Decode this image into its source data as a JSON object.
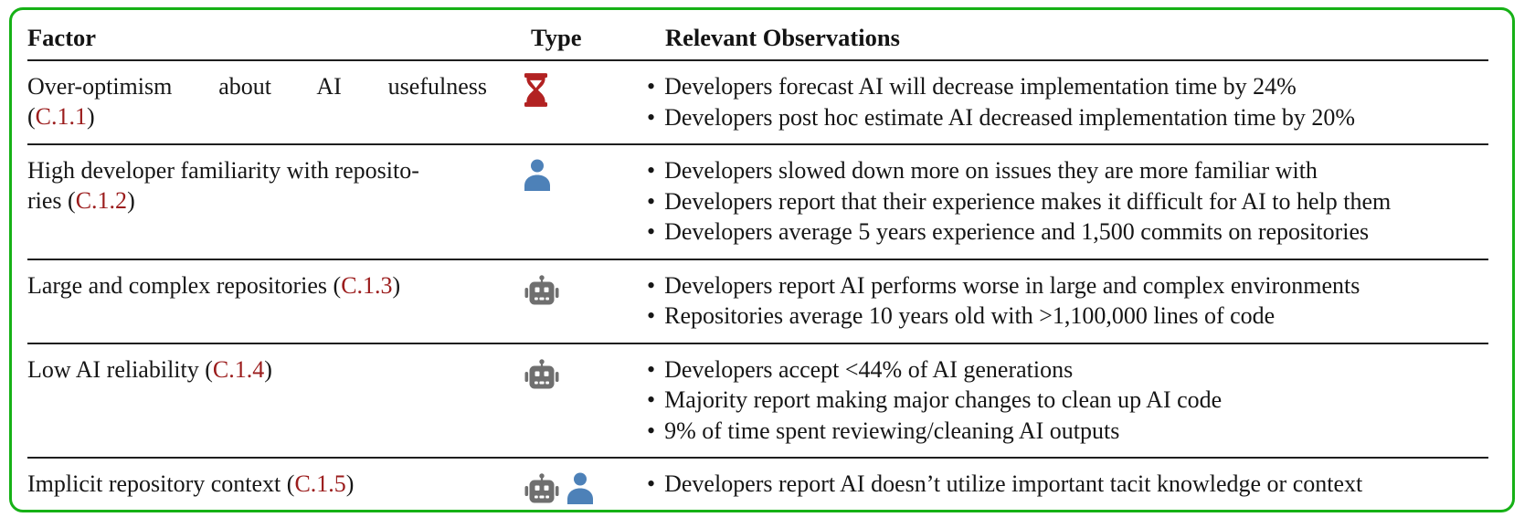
{
  "colors": {
    "frame_green": "#16b116",
    "ref_red": "#9b1c1c",
    "hourglass_red": "#b22222",
    "person_blue": "#4d81b8",
    "robot_gray": "#6f6f6f",
    "text": "#161616",
    "background": "#ffffff"
  },
  "table": {
    "headers": {
      "factor": "Factor",
      "type": "Type",
      "observations": "Relevant Observations"
    },
    "bullet": "•",
    "ref_open": "(",
    "ref_close": ")",
    "rows": [
      {
        "factor_text": "Over-optimism about AI usefulness\n",
        "ref": "C.1.1",
        "spread_first_line": true,
        "icons": [
          "hourglass-icon"
        ],
        "observations": [
          "Developers forecast AI will decrease implementation time by 24%",
          "Developers post hoc estimate AI decreased implementation time by 20%"
        ]
      },
      {
        "factor_text": "High developer familiarity with reposito-\nries ",
        "ref": "C.1.2",
        "spread_first_line": false,
        "icons": [
          "person-icon"
        ],
        "observations": [
          "Developers slowed down more on issues they are more familiar with",
          "Developers report that their experience makes it difficult for AI to help them",
          "Developers average 5 years experience and 1,500 commits on repositories"
        ]
      },
      {
        "factor_text": "Large and complex repositories ",
        "ref": "C.1.3",
        "spread_first_line": false,
        "icons": [
          "robot-icon"
        ],
        "observations": [
          "Developers report AI performs worse in large and complex environments",
          "Repositories average 10 years old with >1,100,000 lines of code"
        ]
      },
      {
        "factor_text": "Low AI reliability ",
        "ref": "C.1.4",
        "spread_first_line": false,
        "icons": [
          "robot-icon"
        ],
        "observations": [
          "Developers accept <44% of AI generations",
          "Majority report making major changes to clean up AI code",
          "9% of time spent reviewing/cleaning AI outputs"
        ]
      },
      {
        "factor_text": "Implicit repository context ",
        "ref": "C.1.5",
        "spread_first_line": false,
        "icons": [
          "robot-icon",
          "person-icon"
        ],
        "observations": [
          "Developers report AI doesn’t utilize important tacit knowledge or context"
        ]
      }
    ]
  }
}
